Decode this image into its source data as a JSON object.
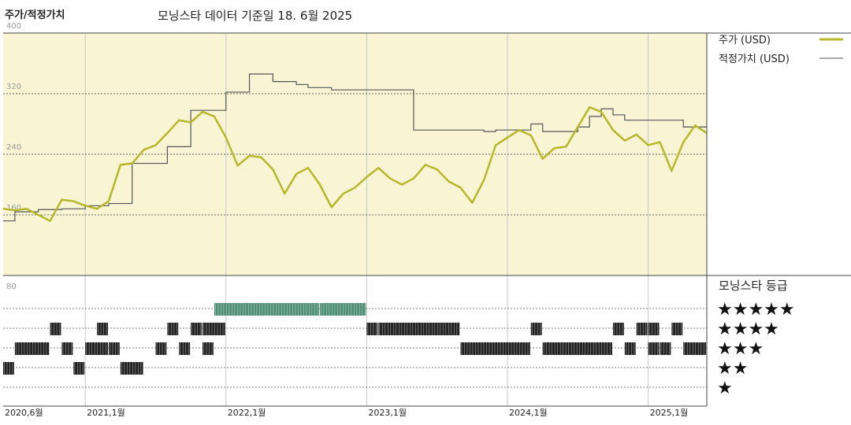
{
  "header": {
    "title": "주가/적정가치",
    "source": "모닝스타 데이터 기준일 18. 6월 2025"
  },
  "legend": {
    "price_label": "주가 (USD)",
    "fair_value_label": "적정가치 (USD)",
    "rating_title": "모닝스타 등급"
  },
  "colors": {
    "price": "#b5b82a",
    "fair_value": "#555555",
    "plot_bg": "#f8f4d4",
    "five_star_bar": "#4f8f77",
    "star_bar": "#222222"
  },
  "chart_data": [
    {
      "type": "line",
      "y_ticks": [
        "400",
        "320",
        "240",
        "160"
      ],
      "ylim": [
        80,
        400
      ],
      "x_tick_labels": [
        "2020,6월",
        "2021,1월",
        "2022,1월",
        "2023,1월",
        "2024,1월",
        "2025,1월"
      ],
      "x_tick_dates": [
        "2020-06",
        "2021-01",
        "2022-01",
        "2023-01",
        "2024-01",
        "2025-01"
      ],
      "x_range": [
        "2020-06",
        "2025-06"
      ],
      "grid": true,
      "series": [
        {
          "name": "적정가치 (USD)",
          "step": true,
          "points": [
            [
              "2020-06",
              152
            ],
            [
              "2020-07",
              164
            ],
            [
              "2020-09",
              167
            ],
            [
              "2020-11",
              168
            ],
            [
              "2021-01",
              172
            ],
            [
              "2021-03",
              175
            ],
            [
              "2021-05",
              228
            ],
            [
              "2021-08",
              250
            ],
            [
              "2021-10",
              298
            ],
            [
              "2022-01",
              322
            ],
            [
              "2022-03",
              346
            ],
            [
              "2022-04",
              346
            ],
            [
              "2022-05",
              336
            ],
            [
              "2022-07",
              332
            ],
            [
              "2022-08",
              328
            ],
            [
              "2022-10",
              325
            ],
            [
              "2022-12",
              325
            ],
            [
              "2023-02",
              325
            ],
            [
              "2023-05",
              272
            ],
            [
              "2023-09",
              272
            ],
            [
              "2023-11",
              270
            ],
            [
              "2023-12",
              272
            ],
            [
              "2024-02",
              272
            ],
            [
              "2024-03",
              280
            ],
            [
              "2024-04",
              270
            ],
            [
              "2024-05",
              270
            ],
            [
              "2024-07",
              276
            ],
            [
              "2024-08",
              290
            ],
            [
              "2024-09",
              300
            ],
            [
              "2024-10",
              292
            ],
            [
              "2024-11",
              285
            ],
            [
              "2025-01",
              285
            ],
            [
              "2025-04",
              276
            ],
            [
              "2025-06",
              276
            ]
          ]
        },
        {
          "name": "주가 (USD)",
          "points": [
            [
              "2020-06",
              168
            ],
            [
              "2020-07",
              166
            ],
            [
              "2020-08",
              168
            ],
            [
              "2020-09",
              160
            ],
            [
              "2020-10",
              152
            ],
            [
              "2020-11",
              180
            ],
            [
              "2020-12",
              178
            ],
            [
              "2021-01",
              172
            ],
            [
              "2021-02",
              168
            ],
            [
              "2021-03",
              178
            ],
            [
              "2021-04",
              226
            ],
            [
              "2021-05",
              228
            ],
            [
              "2021-06",
              246
            ],
            [
              "2021-07",
              252
            ],
            [
              "2021-08",
              268
            ],
            [
              "2021-09",
              285
            ],
            [
              "2021-10",
              282
            ],
            [
              "2021-11",
              296
            ],
            [
              "2021-12",
              290
            ],
            [
              "2022-01",
              262
            ],
            [
              "2022-02",
              225
            ],
            [
              "2022-03",
              238
            ],
            [
              "2022-04",
              236
            ],
            [
              "2022-05",
              220
            ],
            [
              "2022-06",
              188
            ],
            [
              "2022-07",
              214
            ],
            [
              "2022-08",
              222
            ],
            [
              "2022-09",
              200
            ],
            [
              "2022-10",
              170
            ],
            [
              "2022-11",
              188
            ],
            [
              "2022-12",
              196
            ],
            [
              "2023-01",
              210
            ],
            [
              "2023-02",
              222
            ],
            [
              "2023-03",
              208
            ],
            [
              "2023-04",
              200
            ],
            [
              "2023-05",
              208
            ],
            [
              "2023-06",
              226
            ],
            [
              "2023-07",
              220
            ],
            [
              "2023-08",
              204
            ],
            [
              "2023-09",
              196
            ],
            [
              "2023-10",
              176
            ],
            [
              "2023-11",
              206
            ],
            [
              "2023-12",
              252
            ],
            [
              "2024-01",
              262
            ],
            [
              "2024-02",
              272
            ],
            [
              "2024-03",
              265
            ],
            [
              "2024-04",
              234
            ],
            [
              "2024-05",
              248
            ],
            [
              "2024-06",
              250
            ],
            [
              "2024-07",
              276
            ],
            [
              "2024-08",
              302
            ],
            [
              "2024-09",
              296
            ],
            [
              "2024-10",
              272
            ],
            [
              "2024-11",
              258
            ],
            [
              "2024-12",
              266
            ],
            [
              "2025-01",
              252
            ],
            [
              "2025-02",
              256
            ],
            [
              "2025-03",
              218
            ],
            [
              "2025-04",
              256
            ],
            [
              "2025-05",
              278
            ],
            [
              "2025-06",
              268
            ]
          ]
        }
      ]
    },
    {
      "type": "bar",
      "y_ticks": [
        "80"
      ],
      "legend_stars": [
        "★★★★★",
        "★★★★",
        "★★★",
        "★★",
        "★"
      ],
      "series": [
        {
          "name": "★★★★★",
          "stars": 5,
          "periods": [
            [
              "2021-12",
              "2022-09"
            ],
            [
              "2022-09",
              "2023-01"
            ]
          ]
        },
        {
          "name": "★★★★",
          "stars": 4,
          "periods": [
            [
              "2020-10",
              "2020-11"
            ],
            [
              "2021-02",
              "2021-03"
            ],
            [
              "2021-08",
              "2021-09"
            ],
            [
              "2021-10",
              "2021-11"
            ],
            [
              "2021-11",
              "2022-01"
            ],
            [
              "2023-01",
              "2023-02"
            ],
            [
              "2023-02",
              "2023-09"
            ],
            [
              "2024-03",
              "2024-04"
            ],
            [
              "2024-10",
              "2024-11"
            ],
            [
              "2024-12",
              "2025-01"
            ],
            [
              "2025-01",
              "2025-02"
            ],
            [
              "2025-03",
              "2025-04"
            ]
          ]
        },
        {
          "name": "★★★",
          "stars": 3,
          "periods": [
            [
              "2020-07",
              "2020-10"
            ],
            [
              "2020-11",
              "2020-12"
            ],
            [
              "2021-01",
              "2021-03"
            ],
            [
              "2021-03",
              "2021-04"
            ],
            [
              "2021-07",
              "2021-08"
            ],
            [
              "2021-09",
              "2021-10"
            ],
            [
              "2021-11",
              "2021-12"
            ],
            [
              "2023-09",
              "2024-03"
            ],
            [
              "2024-04",
              "2024-10"
            ],
            [
              "2024-11",
              "2024-12"
            ],
            [
              "2025-01",
              "2025-02"
            ],
            [
              "2025-02",
              "2025-03"
            ],
            [
              "2025-04",
              "2025-06"
            ]
          ]
        },
        {
          "name": "★★",
          "stars": 2,
          "periods": [
            [
              "2020-06",
              "2020-07"
            ],
            [
              "2020-12",
              "2021-01"
            ],
            [
              "2021-04",
              "2021-06"
            ]
          ]
        },
        {
          "name": "★",
          "stars": 1,
          "periods": []
        }
      ]
    }
  ]
}
